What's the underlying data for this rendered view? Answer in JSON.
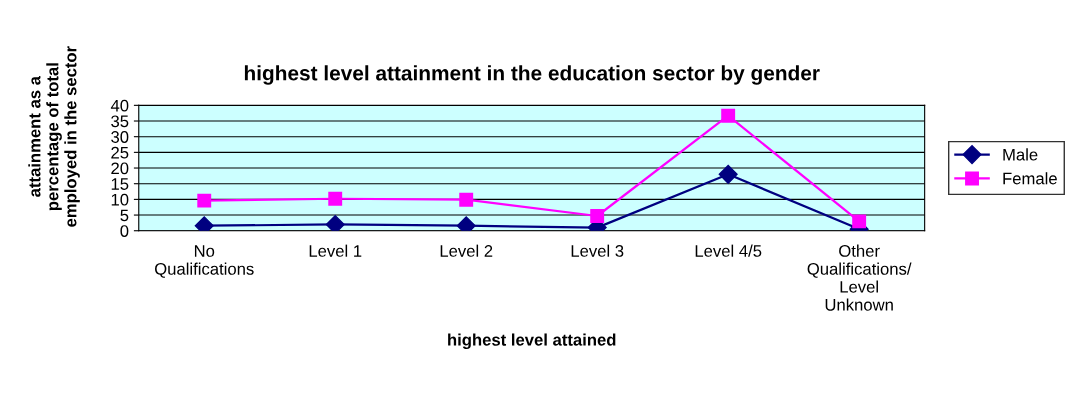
{
  "chart_data": {
    "type": "line",
    "title": "highest level attainment in the education sector by gender",
    "xlabel": "highest level attained",
    "ylabel": "attainment as a\npercentage of total\nemployed in the sector",
    "categories": [
      "No\nQualifications",
      "Level 1",
      "Level 2",
      "Level 3",
      "Level 4/5",
      "Other\nQualifications/\nLevel\nUnknown"
    ],
    "series": [
      {
        "name": "Male",
        "color": "#000080",
        "marker": "diamond",
        "values": [
          1.6,
          2,
          1.6,
          1,
          18,
          0.5
        ]
      },
      {
        "name": "Female",
        "color": "#ff00ff",
        "marker": "square",
        "values": [
          9.6,
          10.2,
          9.9,
          4.7,
          36.7,
          3
        ]
      }
    ],
    "ylim": [
      0,
      40
    ],
    "yticks": [
      0,
      5,
      10,
      15,
      20,
      25,
      30,
      35,
      40
    ],
    "grid": "y",
    "legend": "right"
  }
}
